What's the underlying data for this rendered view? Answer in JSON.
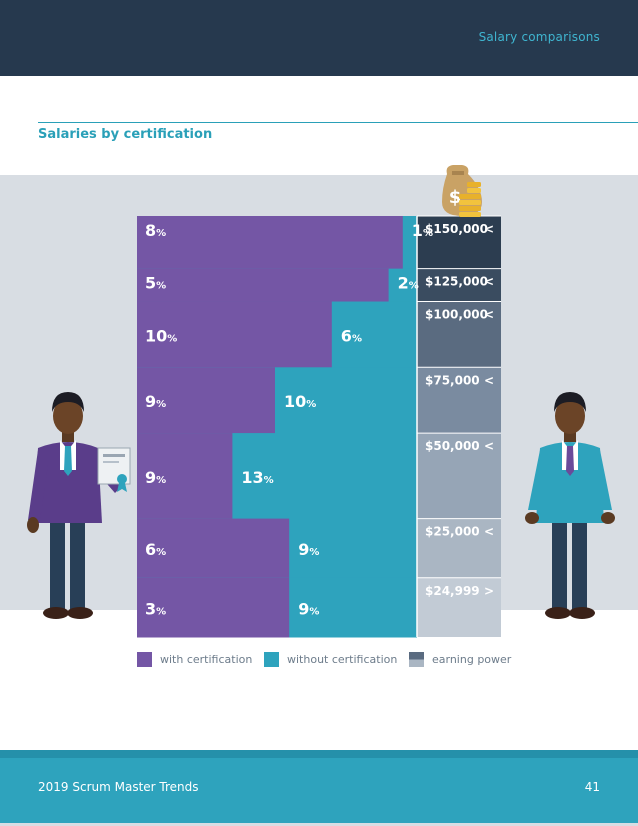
{
  "header": {
    "section": "Salary comparisons"
  },
  "title": "Salaries by certification",
  "legend": {
    "with_cert": "with certification",
    "without_cert": "without certification",
    "earning_power": "earning power"
  },
  "footer": {
    "left": "2019 Scrum Master Trends",
    "page": "41"
  },
  "colors": {
    "with_cert": "#7456a5",
    "without_cert": "#2ea3bd",
    "header": "#26394e",
    "band": "#d8dde3",
    "tiers": [
      "#2c3d50",
      "#3a4c60",
      "#5a6b80",
      "#7a8ba0",
      "#96a5b6",
      "#aab6c3",
      "#c2cbd5"
    ]
  },
  "icons": [
    "money-bag-icon",
    "coin-stack-icon",
    "certificate-icon",
    "man-with-certificate",
    "man-without-certificate"
  ],
  "chart_data": {
    "type": "bar",
    "tiers": [
      {
        "label": "$150,000",
        "symbol": "<",
        "with_cert": 8,
        "without_cert": 1
      },
      {
        "label": "$125,000",
        "symbol": "<",
        "with_cert": 5,
        "without_cert": 2
      },
      {
        "label": "$100,000",
        "symbol": "<",
        "with_cert": 10,
        "without_cert": 6
      },
      {
        "label": "$75,000",
        "symbol": "<",
        "with_cert": 9,
        "without_cert": 10
      },
      {
        "label": "$50,000",
        "symbol": "<",
        "with_cert": 9,
        "without_cert": 13
      },
      {
        "label": "$25,000",
        "symbol": "<",
        "with_cert": 6,
        "without_cert": 9
      },
      {
        "label": "$24,999",
        "symbol": ">",
        "with_cert": 3,
        "without_cert": 9
      }
    ],
    "unit": "%",
    "series": [
      {
        "name": "with certification"
      },
      {
        "name": "without certification"
      }
    ]
  }
}
